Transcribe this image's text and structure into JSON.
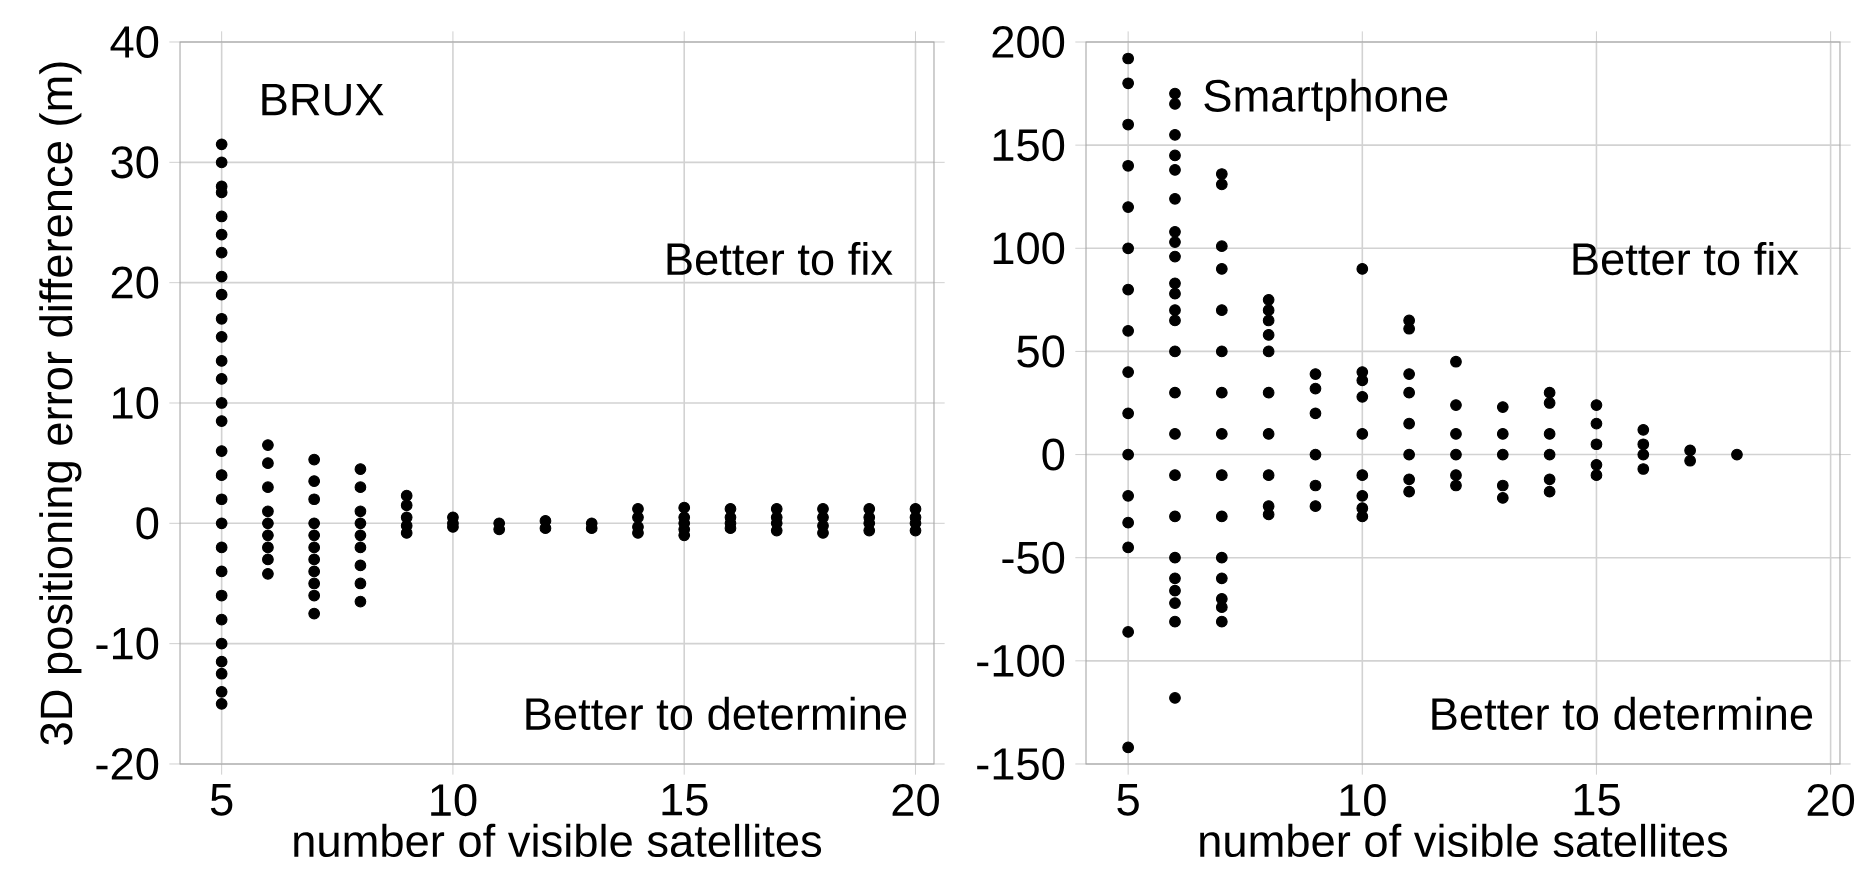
{
  "chart_data": [
    {
      "type": "scatter",
      "xlabel": "number of visible satellites",
      "ylabel": "3D positioning error difference (m)",
      "annotations": [
        "BRUX",
        "Better to fix",
        "Better to determine"
      ],
      "xlim": [
        4.1,
        20.4
      ],
      "ylim": [
        -20,
        40
      ],
      "xticks": [
        5,
        10,
        15,
        20
      ],
      "yticks": [
        -20,
        -10,
        0,
        10,
        20,
        30,
        40
      ],
      "grid": true,
      "marker": "circle",
      "series": [
        {
          "color": "#000000",
          "x": [
            5,
            5,
            5,
            5,
            5,
            5,
            5,
            5,
            5,
            5,
            5,
            5,
            5,
            5,
            5,
            5,
            5,
            5,
            5,
            5,
            5,
            5,
            5,
            5,
            5,
            5,
            5,
            5,
            6,
            6,
            6,
            6,
            6,
            6,
            6,
            6,
            6,
            7,
            7,
            7,
            7,
            7,
            7,
            7,
            7,
            7,
            7,
            7,
            8,
            8,
            8,
            8,
            8,
            8,
            8,
            8,
            8,
            9,
            9,
            9,
            9,
            9,
            10,
            10,
            10,
            11,
            11,
            12,
            12,
            13,
            13,
            14,
            14,
            14,
            14,
            15,
            15,
            15,
            15,
            15,
            16,
            16,
            16,
            16,
            17,
            17,
            17,
            17,
            18,
            18,
            18,
            18,
            19,
            19,
            19,
            19,
            20,
            20,
            20,
            20
          ],
          "values": [
            31.5,
            30,
            28,
            27.5,
            25.5,
            24,
            22.5,
            20.5,
            19,
            17,
            15.5,
            13.5,
            12,
            10,
            8.5,
            6,
            4,
            2,
            0,
            -2,
            -4,
            -6,
            -8,
            -10,
            -11.5,
            -12.5,
            -14,
            -15,
            6.5,
            5,
            3,
            1,
            0,
            -1,
            -2,
            -3,
            -4.2,
            5.3,
            3.5,
            2,
            0,
            -1,
            -2,
            -3,
            -4,
            -5,
            -6,
            -7.5,
            4.5,
            3,
            1,
            0,
            -1,
            -2,
            -3.5,
            -5,
            -6.5,
            2.3,
            1.5,
            0.5,
            -0.2,
            -0.8,
            0.5,
            0,
            -0.3,
            0,
            -0.5,
            0.2,
            -0.4,
            0,
            -0.4,
            1.2,
            0.5,
            -0.3,
            -0.8,
            1.3,
            0.5,
            0,
            -0.5,
            -1,
            1.2,
            0.5,
            0,
            -0.4,
            1.2,
            0.5,
            0,
            -0.6,
            1.2,
            0.5,
            -0.2,
            -0.8,
            1.2,
            0.5,
            0,
            -0.6,
            1.2,
            0.5,
            0,
            -0.6
          ]
        }
      ]
    },
    {
      "type": "scatter",
      "xlabel": "number of visible satellites",
      "annotations": [
        "Smartphone",
        "Better to fix",
        "Better to determine"
      ],
      "xlim": [
        4.1,
        20.2
      ],
      "ylim": [
        -150,
        200
      ],
      "xticks": [
        5,
        10,
        15,
        20
      ],
      "yticks": [
        -150,
        -100,
        -50,
        0,
        50,
        100,
        150,
        200
      ],
      "grid": true,
      "marker": "circle",
      "series": [
        {
          "color": "#000000",
          "x": [
            5,
            5,
            5,
            5,
            5,
            5,
            5,
            5,
            5,
            5,
            5,
            5,
            5,
            5,
            5,
            5,
            6,
            6,
            6,
            6,
            6,
            6,
            6,
            6,
            6,
            6,
            6,
            6,
            6,
            6,
            6,
            6,
            6,
            6,
            6,
            6,
            6,
            6,
            6,
            6,
            7,
            7,
            7,
            7,
            7,
            7,
            7,
            7,
            7,
            7,
            7,
            7,
            7,
            7,
            7,
            8,
            8,
            8,
            8,
            8,
            8,
            8,
            8,
            8,
            8,
            9,
            9,
            9,
            9,
            9,
            9,
            10,
            10,
            10,
            10,
            10,
            10,
            10,
            10,
            10,
            11,
            11,
            11,
            11,
            11,
            11,
            11,
            11,
            12,
            12,
            12,
            12,
            12,
            12,
            13,
            13,
            13,
            13,
            13,
            14,
            14,
            14,
            14,
            14,
            14,
            15,
            15,
            15,
            15,
            15,
            16,
            16,
            16,
            16,
            17,
            17,
            18
          ],
          "values": [
            192,
            180,
            160,
            140,
            120,
            100,
            80,
            60,
            40,
            20,
            0,
            -20,
            -33,
            -45,
            -86,
            -142,
            175,
            170,
            155,
            145,
            138,
            124,
            108,
            103,
            96,
            83,
            78,
            70,
            65,
            50,
            30,
            10,
            -10,
            -30,
            -50,
            -60,
            -66,
            -72,
            -81,
            -118,
            136,
            131,
            101,
            90,
            70,
            50,
            30,
            10,
            -10,
            -30,
            -50,
            -60,
            -70,
            -74,
            -81,
            75,
            70,
            65,
            58,
            50,
            30,
            10,
            -10,
            -25,
            -29,
            39,
            32,
            20,
            0,
            -15,
            -25,
            90,
            40,
            36,
            28,
            10,
            -10,
            -20,
            -26,
            -30,
            65,
            61,
            39,
            30,
            15,
            0,
            -12,
            -18,
            45,
            24,
            10,
            0,
            -10,
            -15,
            23,
            10,
            0,
            -15,
            -21,
            30,
            25,
            10,
            0,
            -12,
            -18,
            24,
            15,
            5,
            -5,
            -10,
            12,
            5,
            0,
            -7,
            2,
            -3,
            0
          ]
        }
      ]
    }
  ]
}
